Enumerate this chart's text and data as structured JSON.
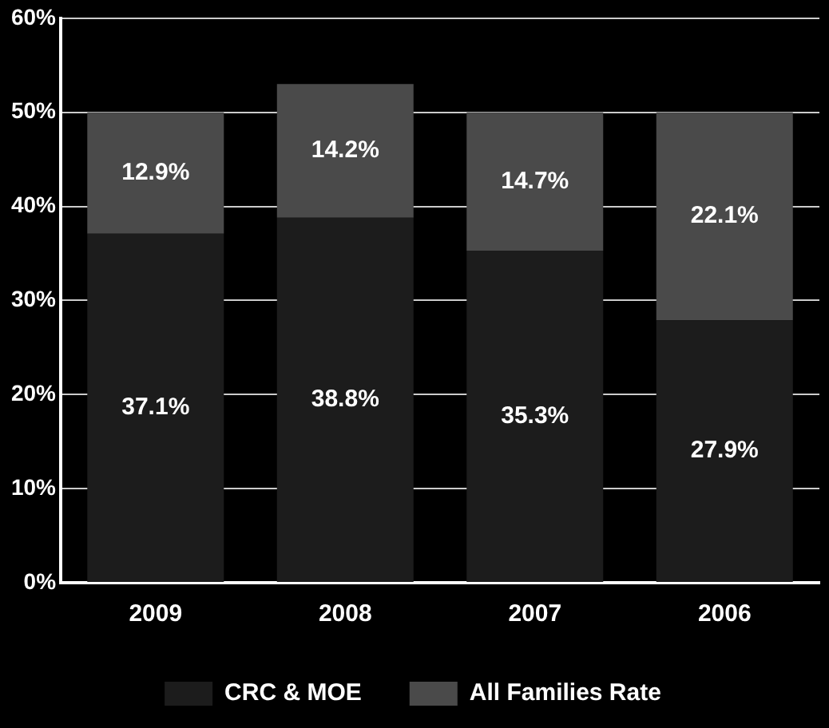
{
  "chart_data": {
    "type": "bar",
    "stacked": true,
    "categories": [
      "2009",
      "2008",
      "2007",
      "2006"
    ],
    "series": [
      {
        "name": "CRC & MOE",
        "color": "#1c1c1c",
        "values": [
          37.1,
          38.8,
          35.3,
          27.9
        ],
        "value_labels": [
          "37.1%",
          "38.8%",
          "35.3%",
          "27.9%"
        ]
      },
      {
        "name": "All Families Rate",
        "color": "#4a4a4a",
        "values": [
          12.9,
          14.2,
          14.7,
          22.1
        ],
        "value_labels": [
          "12.9%",
          "14.2%",
          "14.7%",
          "22.1%"
        ]
      }
    ],
    "ylim": [
      0,
      60
    ],
    "yticks": [
      {
        "value": 0,
        "label": "0%"
      },
      {
        "value": 10,
        "label": "10%"
      },
      {
        "value": 20,
        "label": "20%"
      },
      {
        "value": 30,
        "label": "30%"
      },
      {
        "value": 40,
        "label": "40%"
      },
      {
        "value": 50,
        "label": "50%"
      },
      {
        "value": 60,
        "label": "60%"
      }
    ],
    "grid": "y",
    "legend": "bottom"
  }
}
